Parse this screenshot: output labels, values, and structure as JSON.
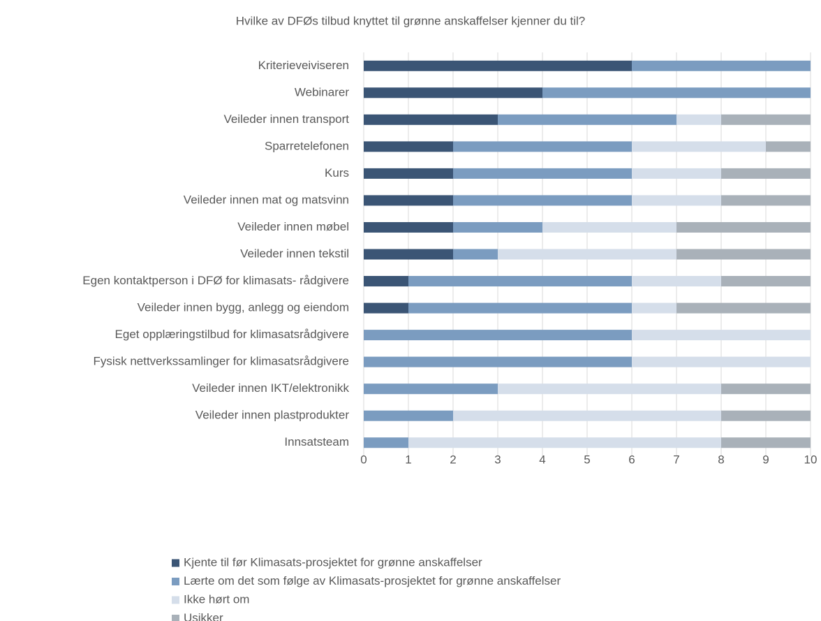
{
  "chart_data": {
    "type": "stacked_barh",
    "title": "Hvilke av DFØs tilbud knyttet til grønne anskaffelser kjenner du til?",
    "categories": [
      "Kriterieveiviseren",
      "Webinarer",
      "Veileder innen transport",
      "Sparretelefonen",
      "Kurs",
      "Veileder innen mat og matsvinn",
      "Veileder innen møbel",
      "Veileder innen tekstil",
      "Egen kontaktperson i DFØ for klimasats- rådgivere",
      "Veileder innen bygg, anlegg og eiendom",
      "Eget opplæringstilbud for klimasatsrådgivere",
      "Fysisk nettverkssamlinger for klimasatsrådgivere",
      "Veileder innen IKT/elektronikk",
      "Veileder innen plastprodukter",
      "Innsatsteam"
    ],
    "series": [
      {
        "name": "Kjente til før Klimasats-prosjektet for grønne anskaffelser",
        "color": "#3b5575",
        "values": [
          6,
          4,
          3,
          2,
          2,
          2,
          2,
          2,
          1,
          1,
          0,
          0,
          0,
          0,
          0
        ]
      },
      {
        "name": "Lærte om det som følge av Klimasats-prosjektet for grønne anskaffelser",
        "color": "#7b9cc0",
        "values": [
          4,
          6,
          4,
          4,
          4,
          4,
          2,
          1,
          5,
          5,
          6,
          6,
          3,
          2,
          1
        ]
      },
      {
        "name": "Ikke hørt om",
        "color": "#d5deea",
        "values": [
          0,
          0,
          1,
          3,
          2,
          2,
          3,
          4,
          2,
          1,
          4,
          4,
          5,
          6,
          7
        ]
      },
      {
        "name": "Usikker",
        "color": "#a9b1b9",
        "values": [
          0,
          0,
          2,
          1,
          2,
          2,
          3,
          3,
          2,
          3,
          0,
          0,
          2,
          2,
          2
        ]
      }
    ],
    "xlim": [
      0,
      10
    ],
    "xticks": [
      0,
      1,
      2,
      3,
      4,
      5,
      6,
      7,
      8,
      9,
      10
    ],
    "grid": true,
    "legend": "bottom"
  }
}
